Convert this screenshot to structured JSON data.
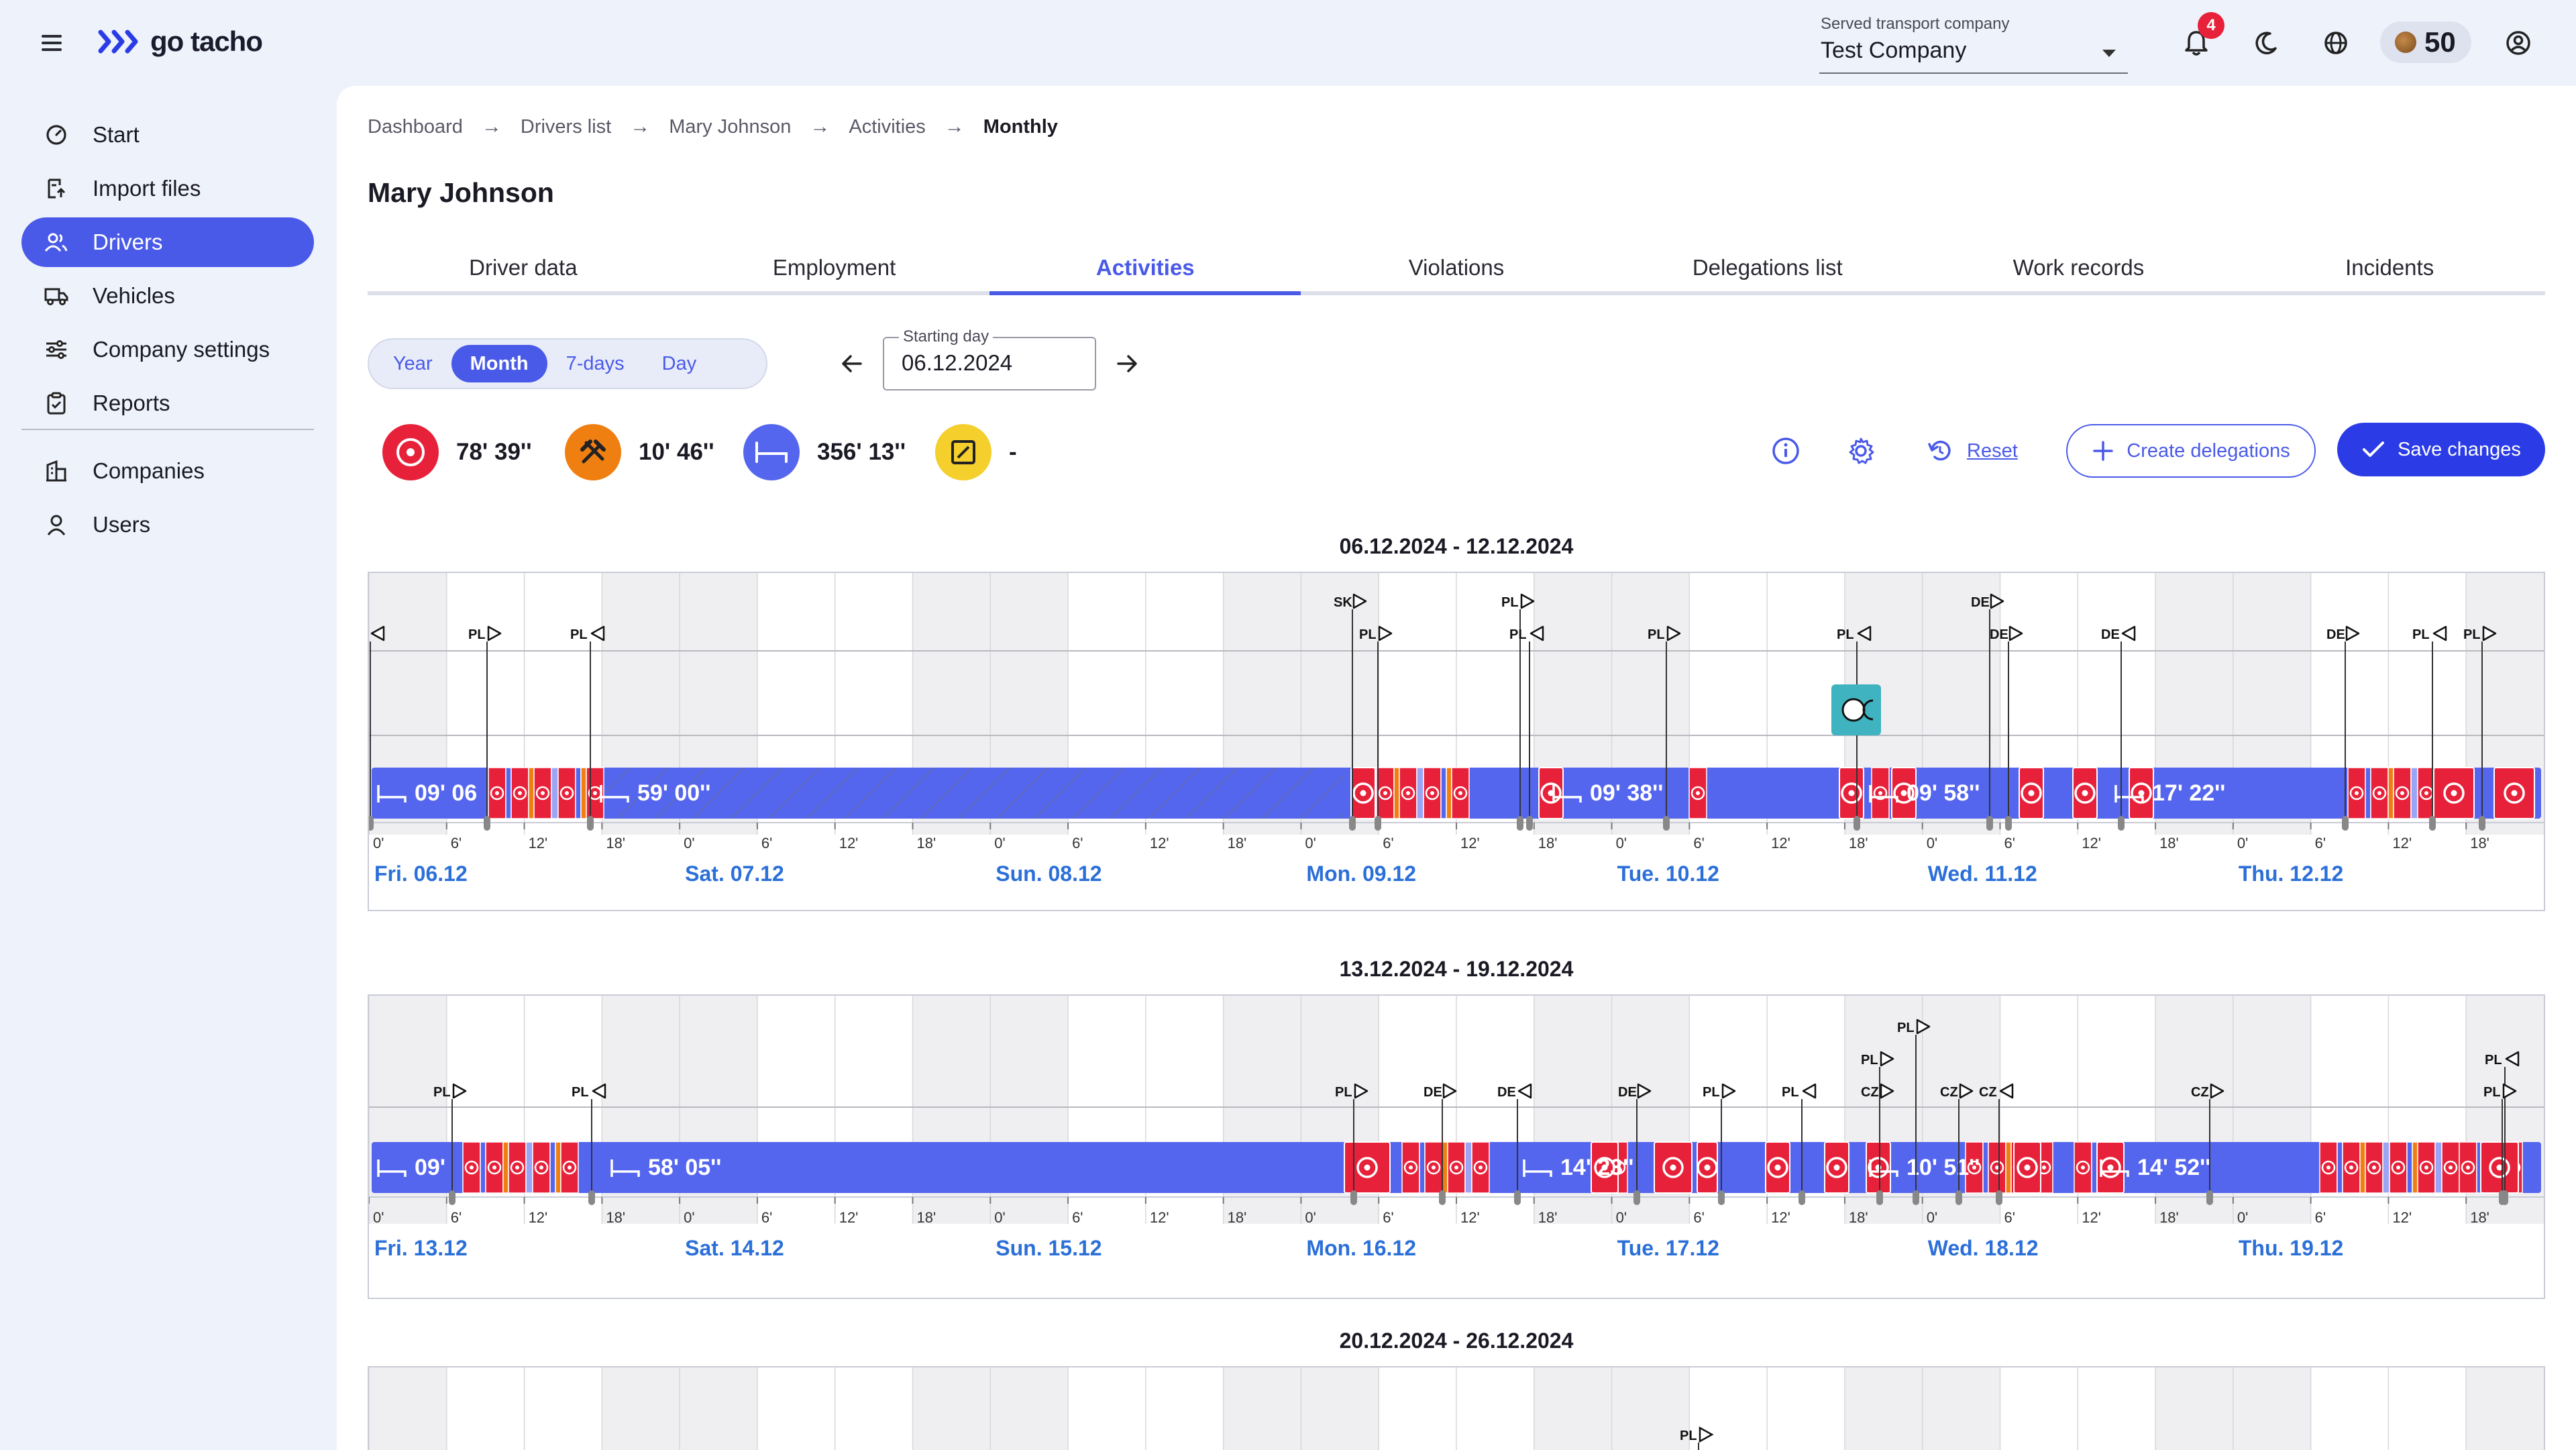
{
  "app": {
    "name": "go tacho"
  },
  "header": {
    "company_label": "Served transport company",
    "company_value": "Test Company",
    "notifications_count": "4",
    "coins": "50"
  },
  "sidebar": {
    "items": [
      {
        "label": "Start",
        "icon": "speedometer-icon"
      },
      {
        "label": "Import files",
        "icon": "import-file-icon"
      },
      {
        "label": "Drivers",
        "icon": "users-icon"
      },
      {
        "label": "Vehicles",
        "icon": "truck-icon"
      },
      {
        "label": "Company settings",
        "icon": "sliders-icon"
      },
      {
        "label": "Reports",
        "icon": "clipboard-icon"
      },
      {
        "label": "Companies",
        "icon": "building-icon"
      },
      {
        "label": "Users",
        "icon": "user-icon"
      }
    ],
    "active": "Drivers"
  },
  "breadcrumb": [
    "Dashboard",
    "Drivers list",
    "Mary Johnson",
    "Activities",
    "Monthly"
  ],
  "page_title": "Mary Johnson",
  "tabs": [
    "Driver data",
    "Employment",
    "Activities",
    "Violations",
    "Delegations list",
    "Work records",
    "Incidents"
  ],
  "active_tab": "Activities",
  "view_modes": [
    "Year",
    "Month",
    "7-days",
    "Day"
  ],
  "active_view": "Month",
  "starting_day": {
    "label": "Starting day",
    "value": "06.12.2024"
  },
  "summary": {
    "driving": "78' 39''",
    "work": "10' 46''",
    "rest": "356' 13''",
    "availability": "-"
  },
  "actions": {
    "reset": "Reset",
    "create_delegations": "Create delegations",
    "save_changes": "Save changes"
  },
  "colors": {
    "primary": "#4a5ae8",
    "driving": "#e8213a",
    "work": "#f07f12",
    "rest": "#5566ee",
    "availability": "#f5cf2c",
    "day_link": "#2b6fd8"
  },
  "weeks": [
    {
      "title": "06.12.2024 - 12.12.2024",
      "days": [
        "Fri. 06.12",
        "Sat. 07.12",
        "Sun. 08.12",
        "Mon. 09.12",
        "Tue. 10.12",
        "Wed. 11.12",
        "Thu. 12.12"
      ],
      "rest_labels": [
        "09' 06",
        "59' 00''",
        "09' 38''",
        "09' 58''",
        "17' 22''"
      ],
      "tick_labels": [
        "0'",
        "6'",
        "12'",
        "18'"
      ],
      "markers": [
        "PL",
        "PL",
        "PL",
        "SK",
        "PL",
        "PL",
        "PL",
        "PL",
        "PL",
        "DE",
        "DE",
        "DE",
        "DE",
        "PL",
        "PL"
      ]
    },
    {
      "title": "13.12.2024 - 19.12.2024",
      "days": [
        "Fri. 13.12",
        "Sat. 14.12",
        "Sun. 15.12",
        "Mon. 16.12",
        "Tue. 17.12",
        "Wed. 18.12",
        "Thu. 19.12"
      ],
      "rest_labels": [
        "09'",
        "58' 05''",
        "14' 23''",
        "10' 51''",
        "14' 52''"
      ],
      "tick_labels": [
        "0'",
        "6'",
        "12'",
        "18'"
      ],
      "markers": [
        "PL",
        "PL",
        "PL",
        "DE",
        "DE",
        "DE",
        "PL",
        "PL",
        "PL",
        "PL",
        "CZ",
        "CZ",
        "CZ",
        "CZ",
        "PL",
        "PL"
      ]
    },
    {
      "title": "20.12.2024 - 26.12.2024",
      "markers": [
        "PL"
      ]
    }
  ]
}
